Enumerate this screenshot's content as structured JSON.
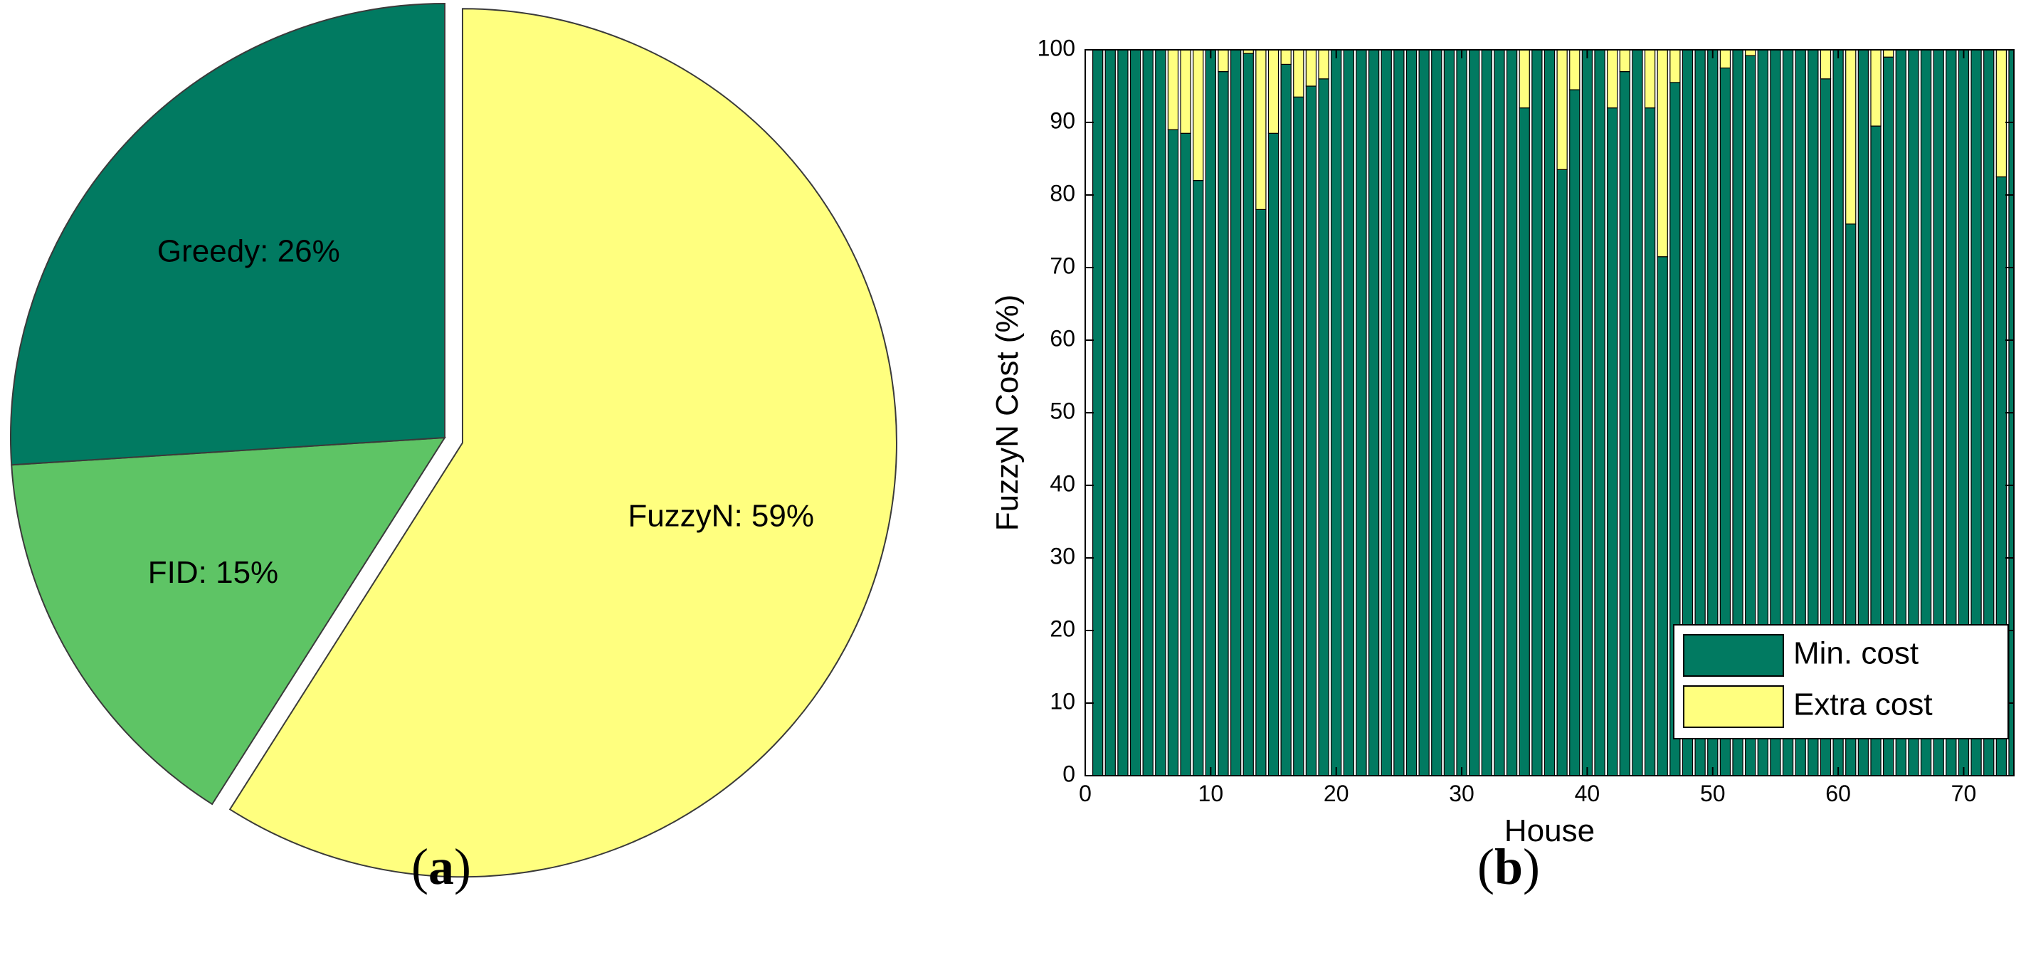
{
  "colors": {
    "greedy": "#017a61",
    "fid": "#5ec465",
    "fuzzyn": "#ffff7f",
    "min_cost": "#017a61",
    "extra_cost": "#ffff7f"
  },
  "panels": {
    "a": {
      "open": "(",
      "letter": "a",
      "close": ")"
    },
    "b": {
      "open": "(",
      "letter": "b",
      "close": ")"
    }
  },
  "chart_data": [
    {
      "type": "pie",
      "panel": "a",
      "slices": [
        {
          "label": "FuzzyN: 59%",
          "name": "FuzzyN",
          "value": 59,
          "color": "#ffff7f",
          "exploded": true
        },
        {
          "label": "FID: 15%",
          "name": "FID",
          "value": 15,
          "color": "#5ec465",
          "exploded": false
        },
        {
          "label": "Greedy: 26%",
          "name": "Greedy",
          "value": 26,
          "color": "#017a61",
          "exploded": false
        }
      ]
    },
    {
      "type": "bar",
      "stacked": true,
      "panel": "b",
      "xlabel": "House",
      "ylabel": "FuzzyN Cost (%)",
      "xlim": [
        0,
        74
      ],
      "ylim": [
        0,
        100
      ],
      "xticks": [
        0,
        10,
        20,
        30,
        40,
        50,
        60,
        70
      ],
      "yticks": [
        0,
        10,
        20,
        30,
        40,
        50,
        60,
        70,
        80,
        90,
        100
      ],
      "legend_position": "bottom-right",
      "x": [
        1,
        2,
        3,
        4,
        5,
        6,
        7,
        8,
        9,
        10,
        11,
        12,
        13,
        14,
        15,
        16,
        17,
        18,
        19,
        20,
        21,
        22,
        23,
        24,
        25,
        26,
        27,
        28,
        29,
        30,
        31,
        32,
        33,
        34,
        35,
        36,
        37,
        38,
        39,
        40,
        41,
        42,
        43,
        44,
        45,
        46,
        47,
        48,
        49,
        50,
        51,
        52,
        53,
        54,
        55,
        56,
        57,
        58,
        59,
        60,
        61,
        62,
        63,
        64,
        65,
        66,
        67,
        68,
        69,
        70,
        71,
        72,
        73,
        74
      ],
      "series": [
        {
          "name": "Min. cost",
          "color": "#017a61",
          "values": [
            100,
            100,
            100,
            100,
            100,
            100,
            89,
            88.5,
            82,
            100,
            97,
            100,
            99.5,
            78,
            88.5,
            98,
            93.5,
            95,
            96,
            100,
            100,
            100,
            100,
            100,
            100,
            100,
            100,
            100,
            100,
            100,
            100,
            100,
            100,
            100,
            92,
            100,
            100,
            83.5,
            94.5,
            100,
            100,
            92,
            97,
            100,
            92,
            71.5,
            95.5,
            100,
            100,
            100,
            97.5,
            100,
            99.2,
            100,
            100,
            100,
            100,
            100,
            96,
            100,
            76,
            100,
            89.5,
            99,
            100,
            100,
            100,
            100,
            100,
            100,
            100,
            100,
            82.5,
            100
          ]
        },
        {
          "name": "Extra cost",
          "color": "#ffff7f",
          "values": [
            0,
            0,
            0,
            0,
            0,
            0,
            11,
            11.5,
            18,
            0,
            3,
            0,
            0.5,
            22,
            11.5,
            2,
            6.5,
            5,
            4,
            0,
            0,
            0,
            0,
            0,
            0,
            0,
            0,
            0,
            0,
            0,
            0,
            0,
            0,
            0,
            8,
            0,
            0,
            16.5,
            5.5,
            0,
            0,
            8,
            3,
            0,
            8,
            28.5,
            4.5,
            0,
            0,
            0,
            2.5,
            0,
            0.8,
            0,
            0,
            0,
            0,
            0,
            4,
            0,
            24,
            0,
            10.5,
            1,
            0,
            0,
            0,
            0,
            0,
            0,
            0,
            0,
            17.5,
            0
          ]
        }
      ]
    }
  ]
}
